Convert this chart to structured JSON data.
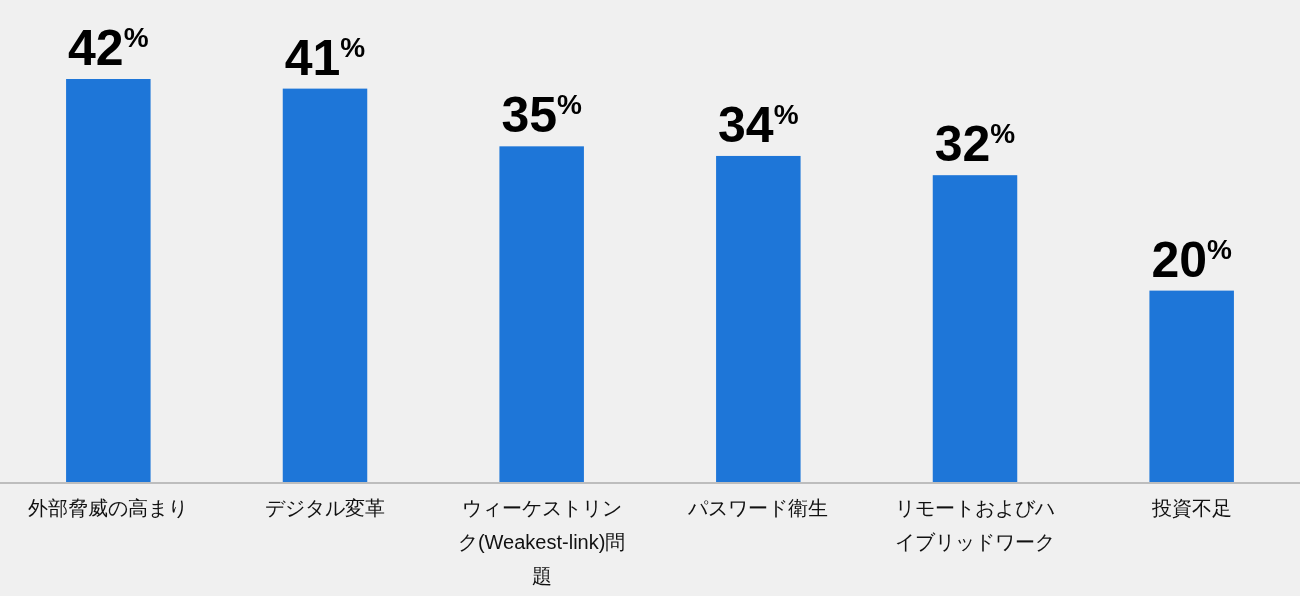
{
  "chart_data": {
    "type": "bar",
    "categories": [
      "外部脅威の高まり",
      "デジタル変革",
      "ウィーケストリンク(Weakest-link)問題",
      "パスワード衛生",
      "リモートおよびハイブリッドワーク",
      "投資不足"
    ],
    "values": [
      42,
      41,
      35,
      34,
      32,
      20
    ],
    "value_labels": [
      "42$^{%}$",
      "41$^{%}$",
      "35$^{%}$",
      "34$^{%}$",
      "32$^{%}$",
      "20$^{%}$"
    ],
    "color": "#1e76d8",
    "tick_labels": "x"
  }
}
